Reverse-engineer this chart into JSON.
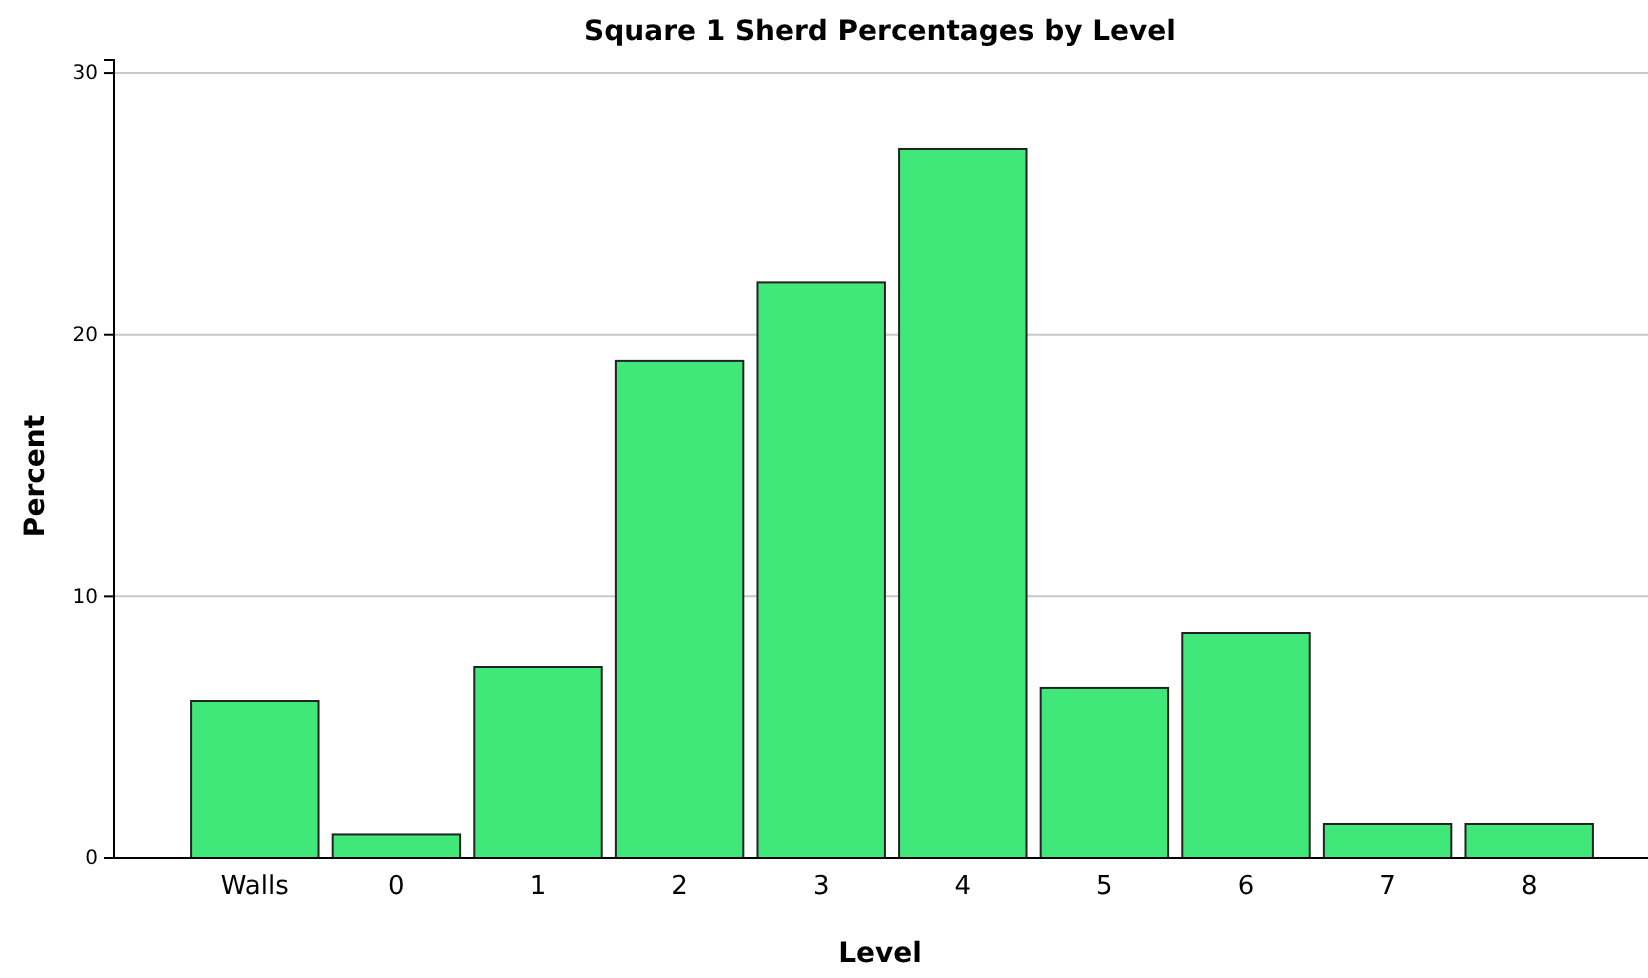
{
  "chart_data": {
    "type": "bar",
    "title": "Square 1 Sherd Percentages by Level",
    "xlabel": "Level",
    "ylabel": "Percent",
    "categories": [
      "Walls",
      "0",
      "1",
      "2",
      "3",
      "4",
      "5",
      "6",
      "7",
      "8"
    ],
    "values": [
      6.0,
      0.9,
      7.3,
      19.0,
      22.0,
      27.1,
      6.5,
      8.6,
      1.3,
      1.3
    ],
    "color": "#40e87a",
    "ylim": [
      0,
      30.5
    ],
    "yticks": [
      0,
      10,
      20,
      30
    ],
    "grid": "y"
  }
}
